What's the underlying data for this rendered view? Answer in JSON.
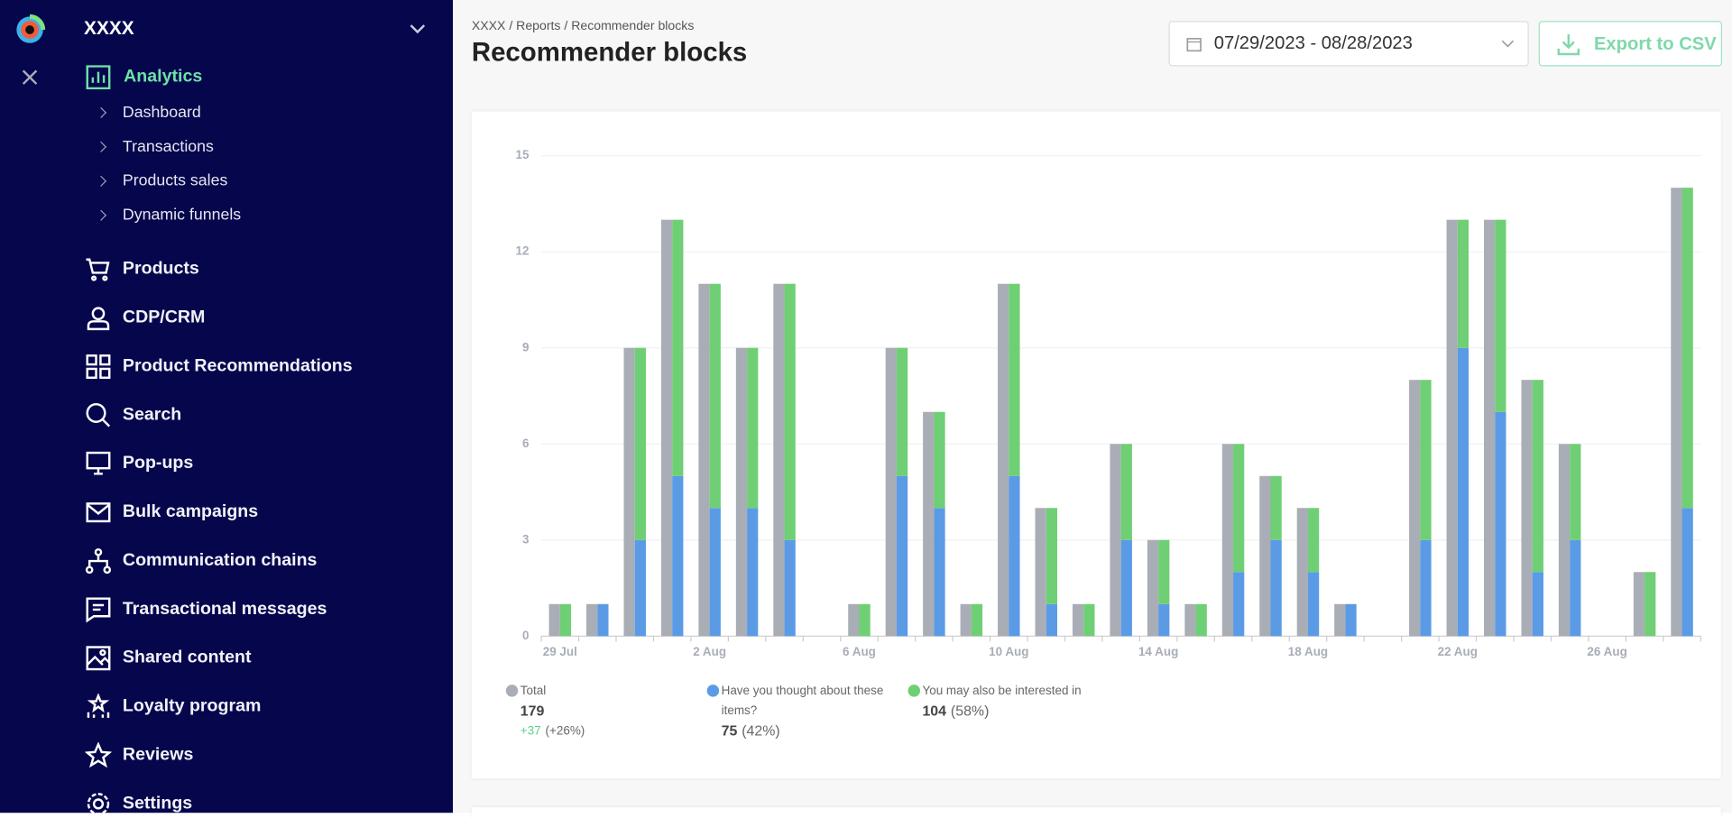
{
  "sidebar": {
    "brand": "XXXX",
    "section": {
      "label": "Analytics",
      "items": [
        "Dashboard",
        "Transactions",
        "Products sales",
        "Dynamic funnels"
      ]
    },
    "menu": [
      "Products",
      "CDP/CRM",
      "Product Recommendations",
      "Search",
      "Pop-ups",
      "Bulk campaigns",
      "Communication chains",
      "Transactional messages",
      "Shared content",
      "Loyalty program",
      "Reviews",
      "Settings"
    ]
  },
  "header": {
    "breadcrumb": "XXXX / Reports / Recommender blocks",
    "title": "Recommender blocks",
    "date_range": "07/29/2023 - 08/28/2023",
    "export": "Export to CSV"
  },
  "chart_data": {
    "type": "bar",
    "categories": [
      "29 Jul",
      null,
      null,
      null,
      "2 Aug",
      null,
      null,
      null,
      "6 Aug",
      null,
      null,
      null,
      "10 Aug",
      null,
      null,
      null,
      "14 Aug",
      null,
      null,
      null,
      "18 Aug",
      null,
      null,
      null,
      "22 Aug",
      null,
      null,
      null,
      "26 Aug",
      null,
      null
    ],
    "grouped_stacks": [
      [
        0
      ],
      [
        1,
        2
      ]
    ],
    "series": [
      {
        "name": "Total",
        "color": "#a9adb5",
        "summary": "179",
        "change": "+37",
        "change_pct": "(+26%)",
        "values": [
          1,
          1,
          9,
          13,
          11,
          9,
          11,
          0,
          1,
          9,
          7,
          1,
          11,
          4,
          1,
          6,
          3,
          1,
          6,
          5,
          4,
          1,
          0,
          8,
          13,
          13,
          8,
          6,
          0,
          2,
          14
        ]
      },
      {
        "name": "Have you thought about these items?",
        "color": "#5b9be6",
        "summary": "75",
        "share": "(42%)",
        "values": [
          0,
          1,
          3,
          5,
          4,
          4,
          3,
          0,
          0,
          5,
          4,
          0,
          5,
          1,
          0,
          3,
          1,
          0,
          2,
          3,
          2,
          1,
          0,
          3,
          9,
          7,
          2,
          3,
          0,
          0,
          4
        ]
      },
      {
        "name": "You may also be interested in",
        "color": "#6fcf75",
        "summary": "104",
        "share": "(58%)",
        "values": [
          1,
          0,
          6,
          8,
          7,
          5,
          8,
          0,
          1,
          4,
          3,
          1,
          6,
          3,
          1,
          3,
          2,
          1,
          4,
          2,
          2,
          0,
          0,
          5,
          4,
          6,
          6,
          3,
          0,
          2,
          10
        ]
      }
    ],
    "ylim": [
      0,
      15
    ],
    "yticks": [
      0,
      3,
      6,
      9,
      12,
      15
    ],
    "grid": true
  }
}
